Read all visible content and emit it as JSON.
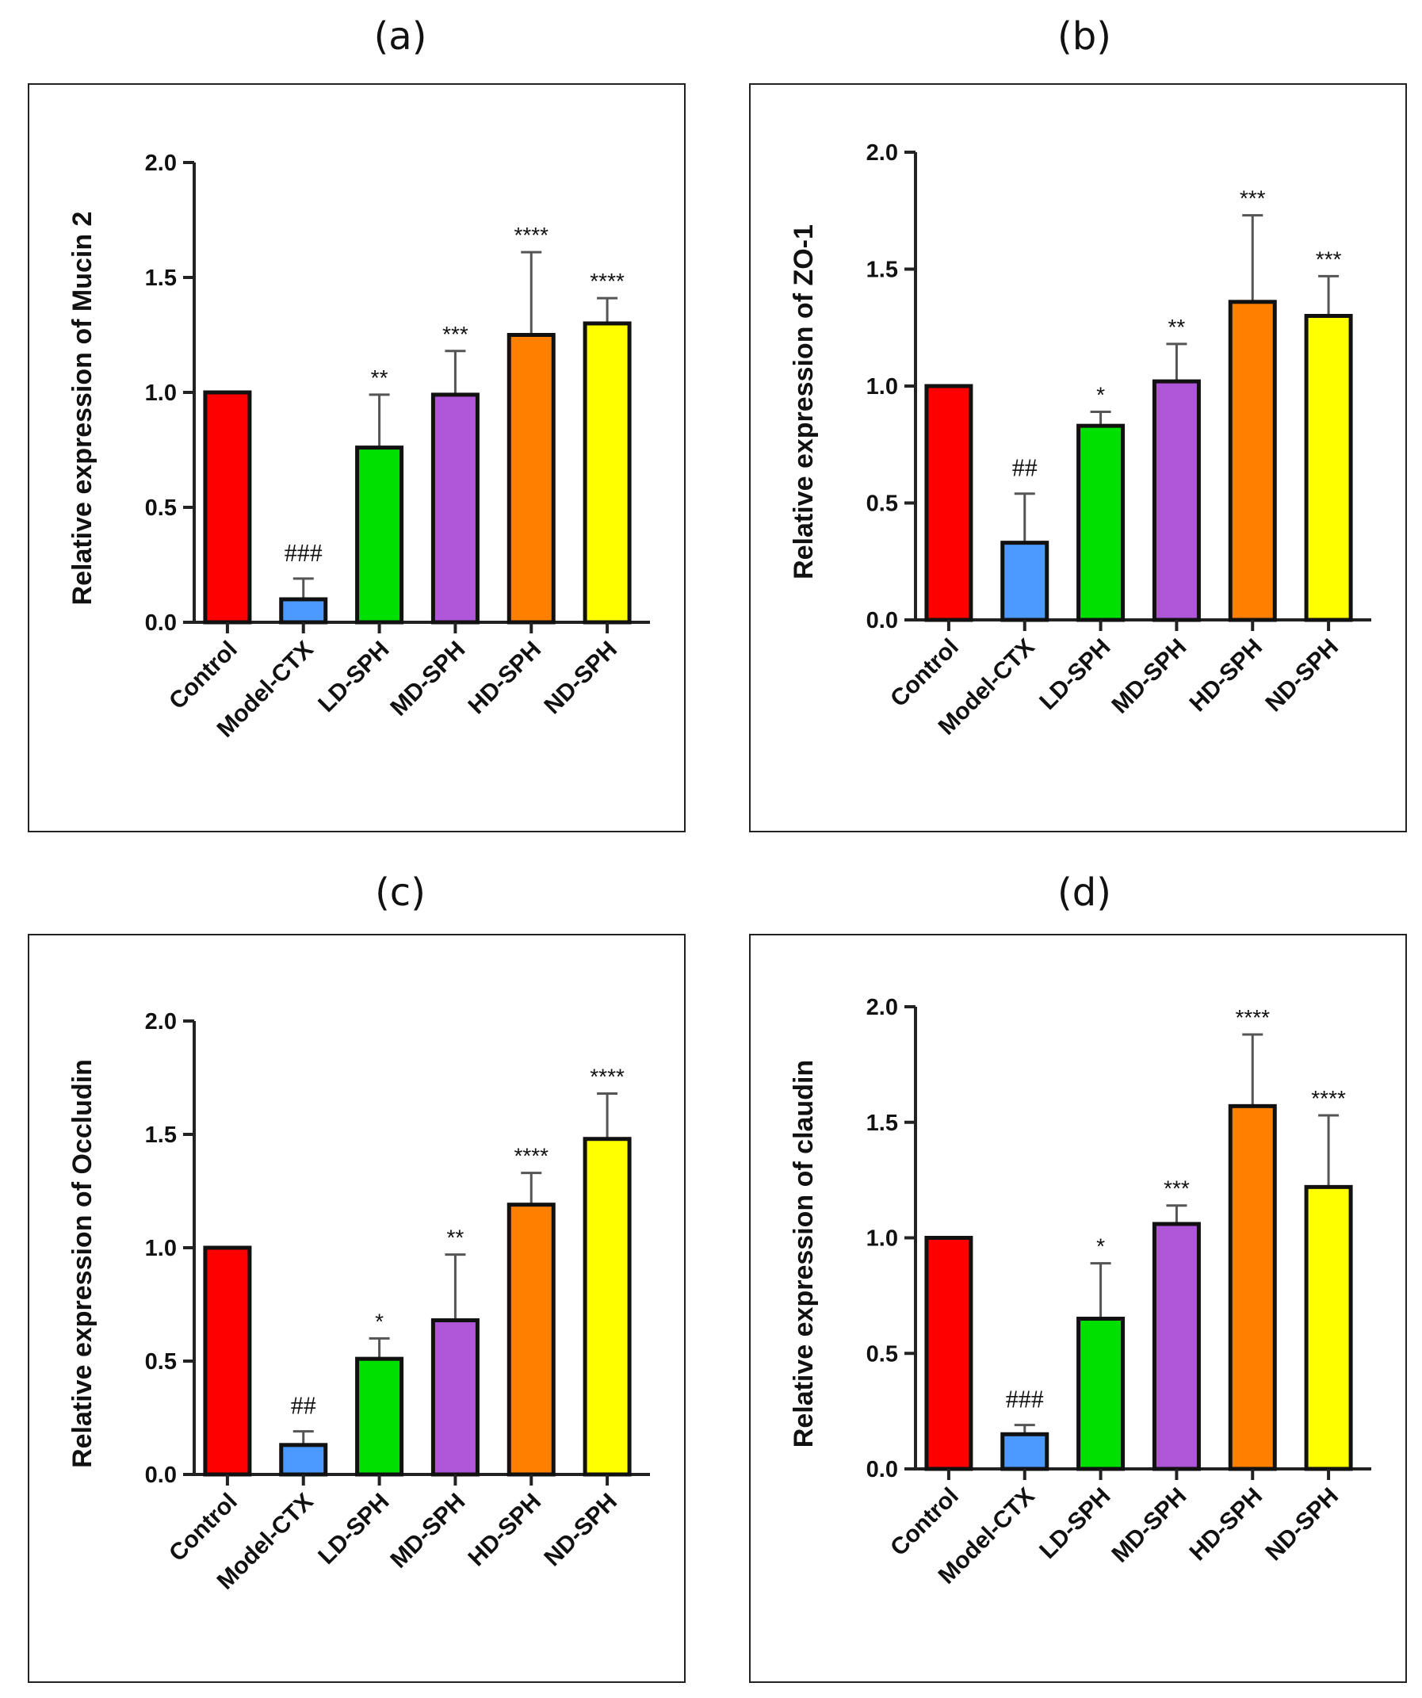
{
  "chart_data": [
    {
      "type": "bar",
      "panel": "(a)",
      "ylabel": "Relative expression of Mucin 2",
      "categories": [
        "Control",
        "Model-CTX",
        "LD-SPH",
        "MD-SPH",
        "HD-SPH",
        "ND-SPH"
      ],
      "values": [
        1.0,
        0.1,
        0.76,
        0.99,
        1.25,
        1.3
      ],
      "errors": [
        0.0,
        0.09,
        0.23,
        0.19,
        0.36,
        0.11
      ],
      "significance": [
        "",
        "###",
        "**",
        "***",
        "****",
        "****"
      ],
      "ylim": [
        0,
        2.0
      ],
      "yticks": [
        "0.0",
        "0.5",
        "1.0",
        "1.5",
        "2.0"
      ],
      "colors": [
        "#ff0000",
        "#4c9aff",
        "#00e000",
        "#b056d8",
        "#ff7f00",
        "#ffff00"
      ]
    },
    {
      "type": "bar",
      "panel": "(b)",
      "ylabel": "Relative expression of ZO-1",
      "categories": [
        "Control",
        "Model-CTX",
        "LD-SPH",
        "MD-SPH",
        "HD-SPH",
        "ND-SPH"
      ],
      "values": [
        1.0,
        0.33,
        0.83,
        1.02,
        1.36,
        1.3
      ],
      "errors": [
        0.0,
        0.21,
        0.06,
        0.16,
        0.37,
        0.17
      ],
      "significance": [
        "",
        "##",
        "*",
        "**",
        "***",
        "***"
      ],
      "ylim": [
        0,
        2.0
      ],
      "yticks": [
        "0.0",
        "0.5",
        "1.0",
        "1.5",
        "2.0"
      ],
      "colors": [
        "#ff0000",
        "#4c9aff",
        "#00e000",
        "#b056d8",
        "#ff7f00",
        "#ffff00"
      ]
    },
    {
      "type": "bar",
      "panel": "(c)",
      "ylabel": "Relative expression of Occludin",
      "categories": [
        "Control",
        "Model-CTX",
        "LD-SPH",
        "MD-SPH",
        "HD-SPH",
        "ND-SPH"
      ],
      "values": [
        1.0,
        0.13,
        0.51,
        0.68,
        1.19,
        1.48
      ],
      "errors": [
        0.0,
        0.06,
        0.09,
        0.29,
        0.14,
        0.2
      ],
      "significance": [
        "",
        "##",
        "*",
        "**",
        "****",
        "****"
      ],
      "ylim": [
        0,
        2.0
      ],
      "yticks": [
        "0.0",
        "0.5",
        "1.0",
        "1.5",
        "2.0"
      ],
      "colors": [
        "#ff0000",
        "#4c9aff",
        "#00e000",
        "#b056d8",
        "#ff7f00",
        "#ffff00"
      ]
    },
    {
      "type": "bar",
      "panel": "(d)",
      "ylabel": "Relative expression of claudin",
      "categories": [
        "Control",
        "Model-CTX",
        "LD-SPH",
        "MD-SPH",
        "HD-SPH",
        "ND-SPH"
      ],
      "values": [
        1.0,
        0.15,
        0.65,
        1.06,
        1.57,
        1.22
      ],
      "errors": [
        0.0,
        0.04,
        0.24,
        0.08,
        0.31,
        0.31
      ],
      "significance": [
        "",
        "###",
        "*",
        "***",
        "****",
        "****"
      ],
      "ylim": [
        0,
        2.0
      ],
      "yticks": [
        "0.0",
        "0.5",
        "1.0",
        "1.5",
        "2.0"
      ],
      "colors": [
        "#ff0000",
        "#4c9aff",
        "#00e000",
        "#b056d8",
        "#ff7f00",
        "#ffff00"
      ]
    }
  ]
}
